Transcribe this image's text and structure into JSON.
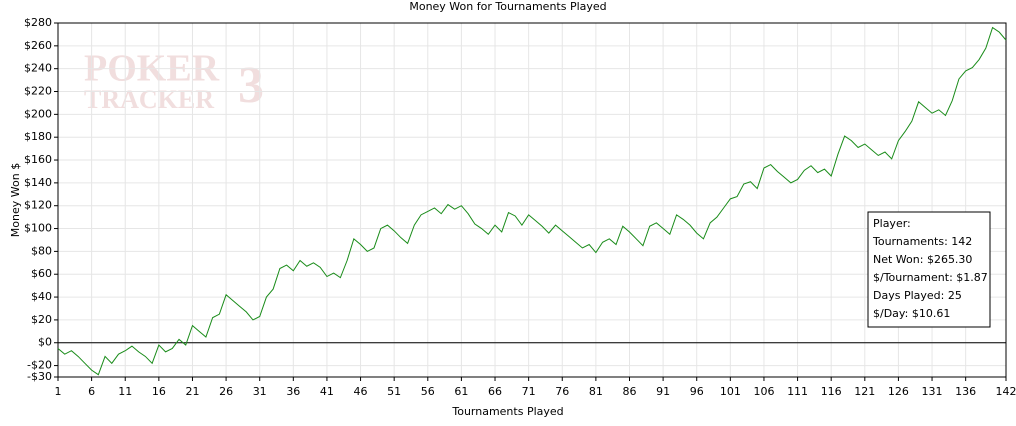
{
  "chart_data": {
    "type": "line",
    "title": "Money Won for Tournaments Played",
    "xlabel": "Tournaments Played",
    "ylabel": "Money Won $",
    "watermark": [
      "POKER",
      "TRACKER",
      "3"
    ],
    "x": [
      1,
      2,
      3,
      4,
      5,
      6,
      7,
      8,
      9,
      10,
      11,
      12,
      13,
      14,
      15,
      16,
      17,
      18,
      19,
      20,
      21,
      22,
      23,
      24,
      25,
      26,
      27,
      28,
      29,
      30,
      31,
      32,
      33,
      34,
      35,
      36,
      37,
      38,
      39,
      40,
      41,
      42,
      43,
      44,
      45,
      46,
      47,
      48,
      49,
      50,
      51,
      52,
      53,
      54,
      55,
      56,
      57,
      58,
      59,
      60,
      61,
      62,
      63,
      64,
      65,
      66,
      67,
      68,
      69,
      70,
      71,
      72,
      73,
      74,
      75,
      76,
      77,
      78,
      79,
      80,
      81,
      82,
      83,
      84,
      85,
      86,
      87,
      88,
      89,
      90,
      91,
      92,
      93,
      94,
      95,
      96,
      97,
      98,
      99,
      100,
      101,
      102,
      103,
      104,
      105,
      106,
      107,
      108,
      109,
      110,
      111,
      112,
      113,
      114,
      115,
      116,
      117,
      118,
      119,
      120,
      121,
      122,
      123,
      124,
      125,
      126,
      127,
      128,
      129,
      130,
      131,
      132,
      133,
      134,
      135,
      136,
      137,
      138,
      139,
      140,
      141,
      142
    ],
    "series": [
      {
        "name": "Money Won",
        "color": "#1a8c1a",
        "values": [
          -5,
          -10,
          -7,
          -12,
          -18,
          -24,
          -28,
          -12,
          -18,
          -10,
          -7,
          -3,
          -8,
          -12,
          -18,
          -2,
          -8,
          -5,
          3,
          -2,
          15,
          10,
          5,
          22,
          25,
          42,
          37,
          32,
          27,
          20,
          23,
          40,
          47,
          65,
          68,
          63,
          72,
          67,
          70,
          66,
          58,
          61,
          57,
          72,
          91,
          86,
          80,
          83,
          100,
          103,
          98,
          92,
          87,
          103,
          112,
          115,
          118,
          113,
          121,
          117,
          120,
          113,
          104,
          100,
          95,
          103,
          97,
          114,
          111,
          103,
          112,
          107,
          102,
          96,
          103,
          98,
          93,
          88,
          83,
          86,
          79,
          88,
          91,
          86,
          102,
          97,
          91,
          85,
          102,
          105,
          100,
          95,
          112,
          108,
          103,
          96,
          91,
          105,
          110,
          118,
          126,
          128,
          139,
          141,
          135,
          153,
          156,
          150,
          145,
          140,
          143,
          151,
          155,
          149,
          152,
          146,
          165,
          181,
          177,
          171,
          174,
          169,
          164,
          167,
          161,
          177,
          185,
          194,
          211,
          206,
          201,
          204,
          199,
          212,
          231,
          238,
          241,
          248,
          258,
          276,
          272,
          265
        ]
      }
    ],
    "xlim": [
      1,
      142
    ],
    "xticks": [
      1,
      6,
      11,
      16,
      21,
      26,
      31,
      36,
      41,
      46,
      51,
      56,
      61,
      66,
      71,
      76,
      81,
      86,
      91,
      96,
      101,
      106,
      111,
      116,
      121,
      126,
      131,
      136,
      142
    ],
    "ylim": [
      -30,
      280
    ],
    "yticks": [
      {
        "value": -30,
        "label": "-$30"
      },
      {
        "value": -20,
        "label": "-$20"
      },
      {
        "value": 0,
        "label": "$0"
      },
      {
        "value": 20,
        "label": "$20"
      },
      {
        "value": 40,
        "label": "$40"
      },
      {
        "value": 60,
        "label": "$60"
      },
      {
        "value": 80,
        "label": "$80"
      },
      {
        "value": 100,
        "label": "$100"
      },
      {
        "value": 120,
        "label": "$120"
      },
      {
        "value": 140,
        "label": "$140"
      },
      {
        "value": 160,
        "label": "$160"
      },
      {
        "value": 180,
        "label": "$180"
      },
      {
        "value": 200,
        "label": "$200"
      },
      {
        "value": 220,
        "label": "$220"
      },
      {
        "value": 240,
        "label": "$240"
      },
      {
        "value": 260,
        "label": "$260"
      },
      {
        "value": 280,
        "label": "$280"
      }
    ],
    "grid": true,
    "annotations": [
      "Player:",
      "Tournaments: 142",
      "Net Won: $265.30",
      "$/Tournament: $1.87",
      "Days Played: 25",
      "$/Day: $10.61"
    ]
  }
}
